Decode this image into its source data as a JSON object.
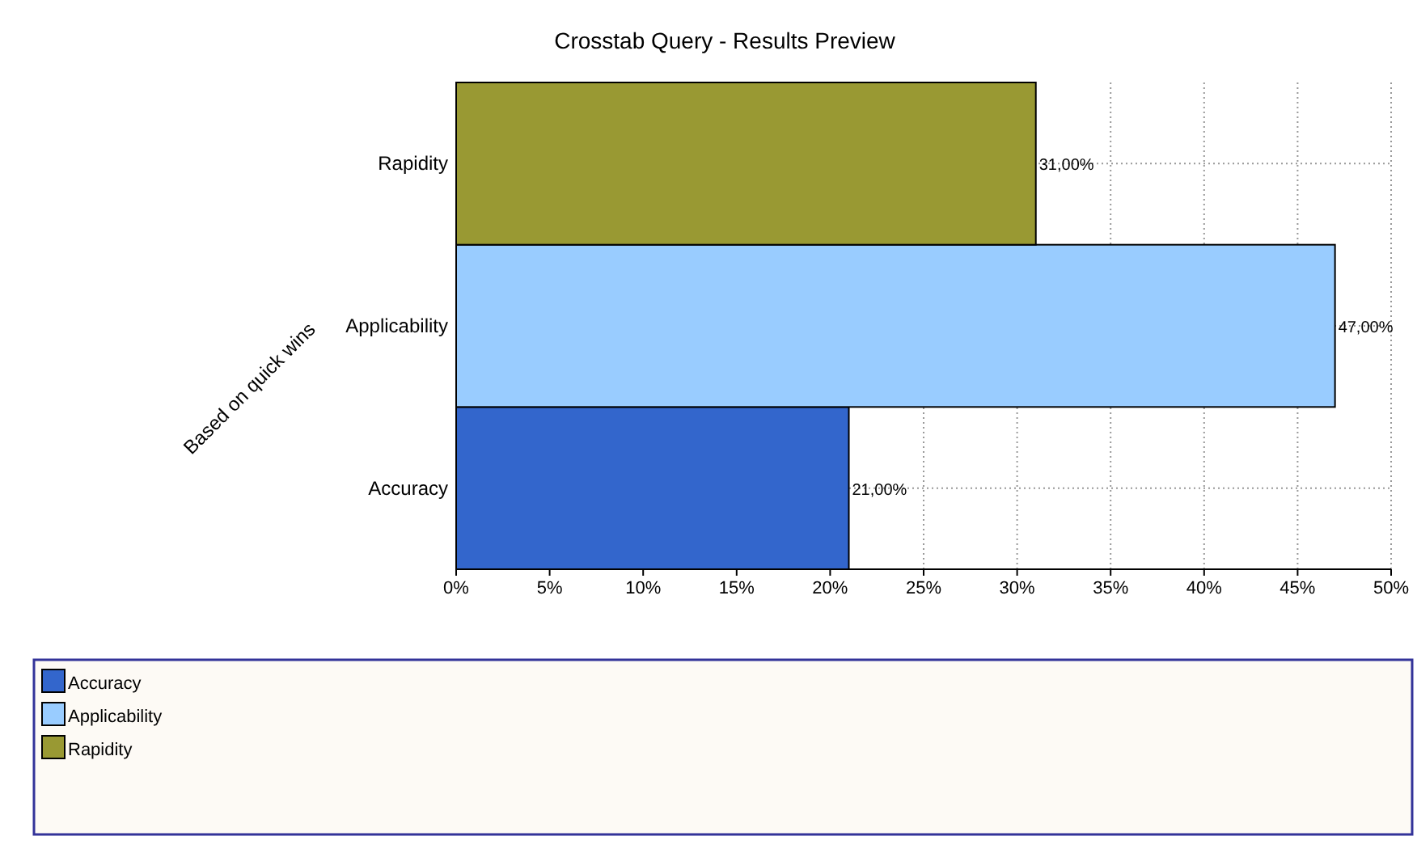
{
  "chart_data": {
    "type": "bar",
    "orientation": "horizontal",
    "stacked": true,
    "title": "Crosstab Query - Results Preview",
    "ylabel": "Based on quick wins",
    "categories": [
      "Rapidity",
      "Applicability",
      "Accuracy"
    ],
    "series": [
      {
        "name": "Accuracy",
        "color": "#3366cc",
        "values": [
          null,
          null,
          21
        ],
        "value_labels": [
          null,
          null,
          "21,00%"
        ]
      },
      {
        "name": "Applicability",
        "color": "#99ccff",
        "values": [
          null,
          47,
          null
        ],
        "value_labels": [
          null,
          "47,00%",
          null
        ]
      },
      {
        "name": "Rapidity",
        "color": "#999933",
        "values": [
          31,
          null,
          null
        ],
        "value_labels": [
          "31,00%",
          null,
          null
        ]
      }
    ],
    "xlim": [
      0,
      50
    ],
    "xticks": [
      {
        "value": 0,
        "label": "0%"
      },
      {
        "value": 5,
        "label": "5%"
      },
      {
        "value": 10,
        "label": "10%"
      },
      {
        "value": 15,
        "label": "15%"
      },
      {
        "value": 20,
        "label": "20%"
      },
      {
        "value": 25,
        "label": "25%"
      },
      {
        "value": 30,
        "label": "30%"
      },
      {
        "value": 35,
        "label": "35%"
      },
      {
        "value": 40,
        "label": "40%"
      },
      {
        "value": 45,
        "label": "45%"
      },
      {
        "value": 50,
        "label": "50%"
      }
    ],
    "grid": true,
    "legend": "bottom"
  }
}
